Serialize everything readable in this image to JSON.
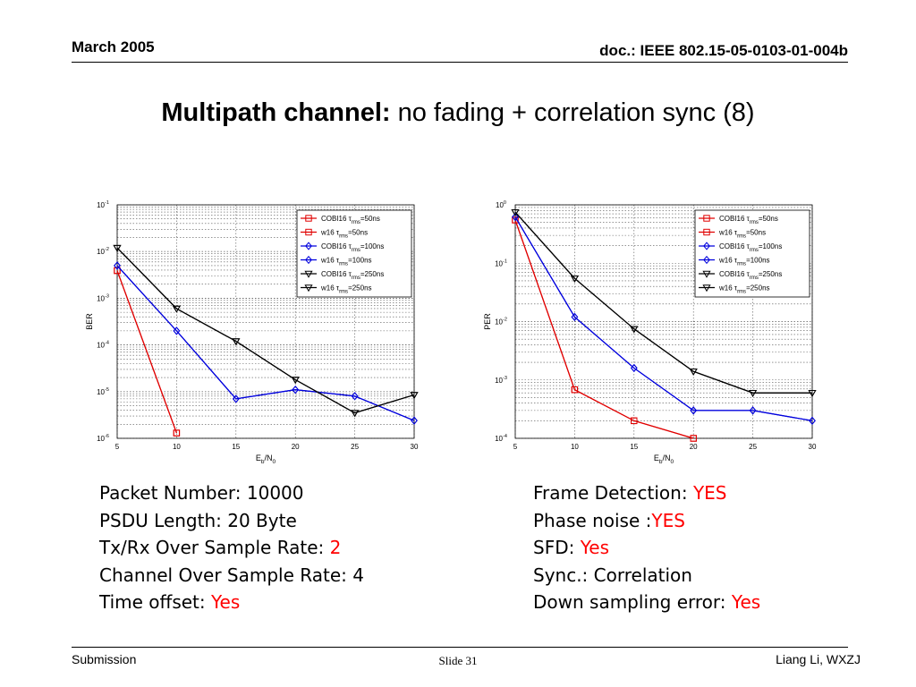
{
  "header": {
    "date": "March 2005",
    "doc": "doc.: IEEE 802.15-05-0103-01-004b"
  },
  "title": {
    "bold": "Multipath channel:",
    "rest": " no fading + correlation sync (8)"
  },
  "chart_data": [
    {
      "type": "line",
      "xlabel": "Eb/N0",
      "ylabel": "BER",
      "xlim": [
        5,
        30
      ],
      "xticks": [
        "5",
        "10",
        "15",
        "20",
        "25",
        "30"
      ],
      "ylim": [
        1e-06,
        0.1
      ],
      "yscale": "log",
      "ytick_exponents": [
        "-1",
        "-2",
        "-3",
        "-4",
        "-5",
        "-6"
      ],
      "grid": true,
      "legend_position": "top-right",
      "series": [
        {
          "name": "COBI16 τrms=50ns",
          "color": "#e00000",
          "marker": "square",
          "x": [
            5,
            10
          ],
          "y": [
            0.0039,
            1.3e-06
          ]
        },
        {
          "name": "w16 τrms=50ns",
          "color": "#e00000",
          "marker": "square",
          "x": [
            5,
            10
          ],
          "y": [
            0.0039,
            1.3e-06
          ]
        },
        {
          "name": "COBI16 τrms=100ns",
          "color": "#0000dd",
          "marker": "diamond",
          "x": [
            5,
            10,
            15,
            20,
            25,
            30
          ],
          "y": [
            0.005,
            0.0002,
            7e-06,
            1.1e-05,
            8e-06,
            2.4e-06
          ]
        },
        {
          "name": "w16 τrms=100ns",
          "color": "#0000dd",
          "marker": "diamond",
          "x": [
            5,
            10,
            15,
            20,
            25,
            30
          ],
          "y": [
            0.005,
            0.0002,
            7e-06,
            1.1e-05,
            8e-06,
            2.4e-06
          ]
        },
        {
          "name": "COBI16 τrms=250ns",
          "color": "#000000",
          "marker": "triangle-down",
          "x": [
            5,
            10,
            15,
            20,
            25,
            30
          ],
          "y": [
            0.012,
            0.0006,
            0.00012,
            1.8e-05,
            3.5e-06,
            8.5e-06
          ]
        },
        {
          "name": "w16 τrms=250ns",
          "color": "#000000",
          "marker": "triangle-down",
          "x": [
            5,
            10,
            15,
            20,
            25,
            30
          ],
          "y": [
            0.012,
            0.0006,
            0.00012,
            1.8e-05,
            3.5e-06,
            8.5e-06
          ]
        }
      ]
    },
    {
      "type": "line",
      "xlabel": "Eb/N0",
      "ylabel": "PER",
      "xlim": [
        5,
        30
      ],
      "xticks": [
        "5",
        "10",
        "15",
        "20",
        "25",
        "30"
      ],
      "ylim": [
        0.0001,
        1
      ],
      "yscale": "log",
      "ytick_exponents": [
        "0",
        "-1",
        "-2",
        "-3",
        "-4"
      ],
      "grid": true,
      "legend_position": "top-right",
      "series": [
        {
          "name": "COBI16 τrms=50ns",
          "color": "#e00000",
          "marker": "square",
          "x": [
            5,
            10,
            15,
            20
          ],
          "y": [
            0.55,
            0.00068,
            0.0002,
            0.0001
          ]
        },
        {
          "name": "w16 τrms=50ns",
          "color": "#e00000",
          "marker": "square",
          "x": [
            5,
            10,
            15,
            20
          ],
          "y": [
            0.55,
            0.00068,
            0.0002,
            0.0001
          ]
        },
        {
          "name": "COBI16 τrms=100ns",
          "color": "#0000dd",
          "marker": "diamond",
          "x": [
            5,
            10,
            15,
            20,
            25,
            30
          ],
          "y": [
            0.62,
            0.012,
            0.0016,
            0.0003,
            0.0003,
            0.0002
          ]
        },
        {
          "name": "w16 τrms=100ns",
          "color": "#0000dd",
          "marker": "diamond",
          "x": [
            5,
            10,
            15,
            20,
            25,
            30
          ],
          "y": [
            0.62,
            0.012,
            0.0016,
            0.0003,
            0.0003,
            0.0002
          ]
        },
        {
          "name": "COBI16 τrms=250ns",
          "color": "#000000",
          "marker": "triangle-down",
          "x": [
            5,
            10,
            15,
            20,
            25,
            30
          ],
          "y": [
            0.75,
            0.055,
            0.0075,
            0.0014,
            0.0006,
            0.0006
          ]
        },
        {
          "name": "w16 τrms=250ns",
          "color": "#000000",
          "marker": "triangle-down",
          "x": [
            5,
            10,
            15,
            20,
            25,
            30
          ],
          "y": [
            0.75,
            0.055,
            0.0075,
            0.0014,
            0.0006,
            0.0006
          ]
        }
      ]
    }
  ],
  "params_left": [
    {
      "label": "Packet Number: 10000",
      "value": ""
    },
    {
      "label": "PSDU Length: 20 Byte",
      "value": ""
    },
    {
      "label": "Tx/Rx Over Sample Rate: ",
      "value": "2"
    },
    {
      "label": "Channel Over Sample Rate: 4",
      "value": ""
    },
    {
      "label": "Time offset: ",
      "value": "Yes"
    }
  ],
  "params_right": [
    {
      "label": "Frame Detection: ",
      "value": "YES"
    },
    {
      "label": "Phase noise :",
      "value": "YES"
    },
    {
      "label": "SFD: ",
      "value": "Yes"
    },
    {
      "label": "Sync.: Correlation",
      "value": ""
    },
    {
      "label": "Down sampling error: ",
      "value": "Yes"
    }
  ],
  "footer": {
    "left": "Submission",
    "middle": "Slide 31",
    "right": "Liang Li, WXZJ"
  }
}
